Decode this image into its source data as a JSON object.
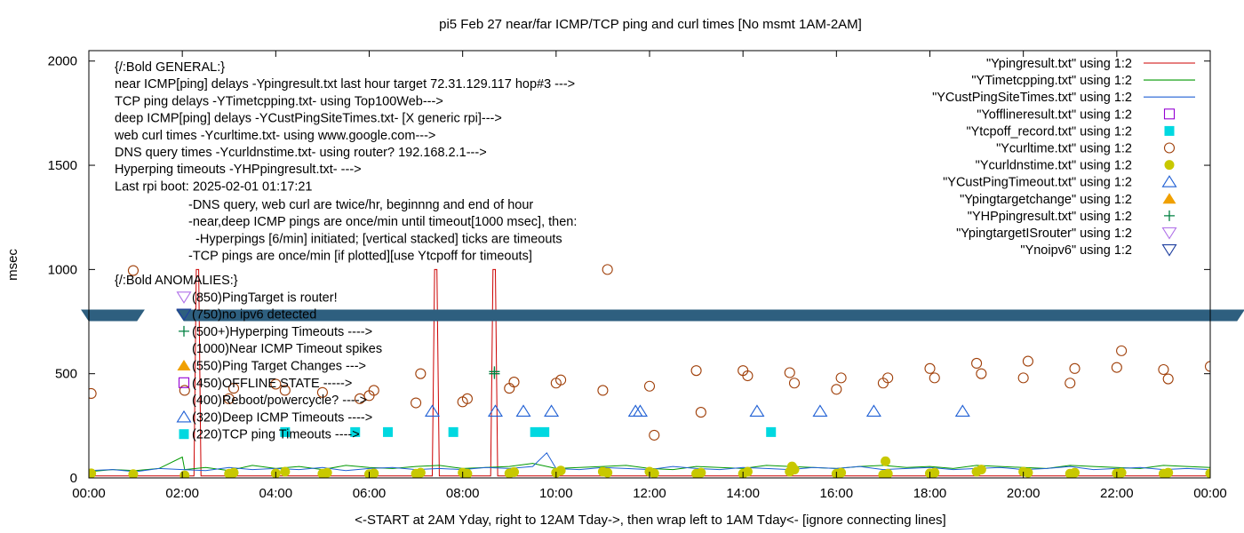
{
  "chart_data": {
    "type": "scatter",
    "title": "pi5 Feb 27  near/far ICMP/TCP ping and curl times [No msmt 1AM-2AM]",
    "xlabel": "<-START at 2AM Yday, right to 12AM Tday->, then wrap left to 1AM Tday<- [ignore connecting lines]",
    "ylabel": "msec",
    "xlim": [
      0,
      24
    ],
    "ylim": [
      0,
      2050
    ],
    "xticks": [
      0,
      2,
      4,
      6,
      8,
      10,
      12,
      14,
      16,
      18,
      20,
      22,
      24
    ],
    "xtick_labels": [
      "00:00",
      "02:00",
      "04:00",
      "06:00",
      "08:00",
      "10:00",
      "12:00",
      "14:00",
      "16:00",
      "18:00",
      "20:00",
      "22:00",
      "00:00"
    ],
    "yticks": [
      0,
      500,
      1000,
      1500,
      2000
    ],
    "ytick_labels": [
      "0",
      "500",
      "1000",
      "1500",
      "2000"
    ],
    "grid": false,
    "legend_position": "top-right",
    "legend": [
      {
        "label": "\"Ypingresult.txt\" using 1:2",
        "style": "line",
        "color": "#cc0000"
      },
      {
        "label": "\"YTimetcpping.txt\" using 1:2",
        "style": "line",
        "color": "#009900"
      },
      {
        "label": "\"YCustPingSiteTimes.txt\" using 1:2",
        "style": "line",
        "color": "#1f5fd4"
      },
      {
        "label": "\"Yofflineresult.txt\" using 1:2",
        "style": "open-square",
        "color": "#9400d3"
      },
      {
        "label": "\"Ytcpoff_record.txt\" using 1:2",
        "style": "filled-square",
        "color": "#00d8e0"
      },
      {
        "label": "\"Ycurltime.txt\" using 1:2",
        "style": "open-circle",
        "color": "#a0400a"
      },
      {
        "label": "\"Ycurldnstime.txt\" using 1:2",
        "style": "filled-circle",
        "color": "#c8c800"
      },
      {
        "label": "\"YCustPingTimeout.txt\" using 1:2",
        "style": "open-triangle-up",
        "color": "#1f5fd4"
      },
      {
        "label": "\"Ypingtargetchange\" using 1:2",
        "style": "filled-triangle-up",
        "color": "#f0a000"
      },
      {
        "label": "\"YHPpingresult.txt\" using 1:2",
        "style": "plus",
        "color": "#008040"
      },
      {
        "label": "\"YpingtargetISrouter\" using 1:2",
        "style": "open-triangle-down",
        "color": "#b070e8"
      },
      {
        "label": "\"Ynoipv6\" using 1:2",
        "style": "open-triangle-down",
        "color": "#1f3f9f"
      }
    ],
    "annotations_general": [
      "{/:Bold GENERAL:}",
      "near ICMP[ping] delays -Ypingresult.txt last hour target 72.31.129.117 hop#3 --->",
      "TCP ping delays -YTimetcpping.txt- using Top100Web--->",
      "deep ICMP[ping] delays -YCustPingSiteTimes.txt- [X generic rpi]--->",
      "web curl times -Ycurltime.txt- using www.google.com--->",
      "DNS query times -Ycurldnstime.txt- using router? 192.168.2.1--->",
      "Hyperping timeouts -YHPpingresult.txt- --->",
      "Last rpi boot: 2025-02-01 01:17:21"
    ],
    "annotations_notes": [
      "-DNS query, web curl are twice/hr, beginnng and end of hour",
      "-near,deep ICMP pings are once/min until timeout[1000 msec], then:",
      "  -Hyperpings [6/min] initiated; [vertical stacked] ticks are timeouts",
      "-TCP pings are once/min [if plotted][use Ytcpoff for timeouts]"
    ],
    "annotations_anomalies": [
      "{/:Bold ANOMALIES:}",
      "(850)PingTarget is router!",
      "(750)no ipv6 detected",
      "(500+)Hyperping Timeouts ---->",
      "(1000)Near ICMP Timeout spikes",
      "(550)Ping Target Changes --->",
      "(450)OFFLINE STATE ----->",
      "(400)Reboot/powercycle? ---->",
      "(320)Deep ICMP Timeouts ---->",
      "(220)TCP ping Timeouts ---->"
    ],
    "noipv6_band": {
      "y": 780,
      "color": "#2e5f7f"
    },
    "series": [
      {
        "name": "\"Ycurltime.txt\" using 1:2",
        "style": "open-circle",
        "color": "#a0400a",
        "x": [
          0.05,
          0.95,
          2.05,
          3.0,
          3.1,
          4.0,
          4.2,
          5.0,
          5.8,
          6.0,
          6.1,
          7.0,
          7.1,
          8.0,
          8.1,
          9.0,
          9.1,
          10.0,
          10.1,
          11.0,
          11.1,
          12.0,
          12.1,
          13.0,
          13.1,
          14.0,
          14.1,
          15.0,
          15.1,
          16.0,
          16.1,
          17.0,
          17.1,
          18.0,
          18.1,
          19.0,
          19.1,
          20.0,
          20.1,
          21.0,
          21.1,
          22.0,
          22.1,
          23.0,
          23.1,
          24.0
        ],
        "y": [
          405,
          995,
          420,
          380,
          430,
          450,
          420,
          410,
          380,
          395,
          420,
          360,
          500,
          365,
          380,
          430,
          460,
          455,
          470,
          420,
          1000,
          440,
          205,
          515,
          315,
          515,
          490,
          505,
          455,
          425,
          480,
          455,
          480,
          525,
          480,
          550,
          500,
          480,
          560,
          455,
          525,
          530,
          610,
          520,
          475,
          535
        ]
      },
      {
        "name": "\"Ycurldnstime.txt\" using 1:2",
        "style": "filled-circle",
        "color": "#c8c800",
        "x": [
          0.05,
          0.95,
          2.05,
          3.0,
          3.1,
          4.0,
          4.2,
          5.0,
          5.1,
          6.0,
          6.1,
          7.0,
          7.1,
          8.0,
          8.1,
          9.0,
          9.1,
          10.0,
          10.1,
          11.0,
          11.1,
          12.0,
          12.1,
          13.0,
          13.1,
          14.0,
          14.1,
          15.0,
          15.05,
          15.1,
          16.0,
          16.1,
          17.0,
          17.05,
          17.1,
          18.0,
          18.1,
          19.0,
          19.1,
          20.0,
          20.1,
          21.0,
          21.1,
          22.0,
          22.1,
          23.0,
          23.1,
          24.0
        ],
        "y": [
          22,
          18,
          12,
          20,
          25,
          22,
          30,
          20,
          25,
          18,
          22,
          20,
          25,
          25,
          20,
          22,
          28,
          25,
          35,
          30,
          25,
          30,
          22,
          20,
          25,
          20,
          30,
          30,
          55,
          40,
          20,
          25,
          15,
          80,
          20,
          22,
          25,
          30,
          40,
          30,
          25,
          20,
          25,
          22,
          25,
          20,
          25,
          22
        ]
      },
      {
        "name": "\"YCustPingTimeout.txt\" using 1:2",
        "style": "open-triangle-up",
        "color": "#1f5fd4",
        "x": [
          7.35,
          8.7,
          9.3,
          9.9,
          11.7,
          11.8,
          14.3,
          15.65,
          16.8,
          18.7
        ],
        "y": [
          320,
          320,
          320,
          320,
          320,
          320,
          320,
          320,
          320,
          320
        ]
      },
      {
        "name": "\"Ytcpoff_record.txt\" using 1:2",
        "style": "filled-square",
        "color": "#00d8e0",
        "x": [
          4.2,
          5.7,
          6.4,
          7.8,
          9.55,
          9.75,
          14.6
        ],
        "y": [
          220,
          220,
          220,
          220,
          220,
          220,
          220
        ]
      },
      {
        "name": "\"YHPpingresult.txt\" using 1:2",
        "style": "plus",
        "color": "#008040",
        "x": [
          8.68,
          8.68
        ],
        "y": [
          500,
          510
        ]
      },
      {
        "name": "\"Ypingresult.txt\" using 1:2",
        "style": "line",
        "color": "#cc0000",
        "x": [
          0,
          2.25,
          2.3,
          2.35,
          2.4,
          7.35,
          7.4,
          7.45,
          7.5,
          8.6,
          8.65,
          8.7,
          8.75,
          24
        ],
        "y": [
          10,
          10,
          1000,
          1000,
          10,
          10,
          1000,
          1000,
          10,
          10,
          1000,
          1000,
          10,
          10
        ]
      },
      {
        "name": "\"YTimetcpping.txt\" using 1:2",
        "style": "line",
        "color": "#009900",
        "x": [
          0,
          0.5,
          1.0,
          1.5,
          2.0,
          2.05,
          2.5,
          3.0,
          3.5,
          4.0,
          4.5,
          5.0,
          5.5,
          6.0,
          6.5,
          7.0,
          7.5,
          8.0,
          8.5,
          9.0,
          9.5,
          10.0,
          10.5,
          11.0,
          11.5,
          12.0,
          12.5,
          13.0,
          13.5,
          14.0,
          14.5,
          15.0,
          15.5,
          16.0,
          16.5,
          17.0,
          17.5,
          18.0,
          18.5,
          19.0,
          19.5,
          20.0,
          20.5,
          21.0,
          21.5,
          22.0,
          22.5,
          23.0,
          23.5,
          24.0
        ],
        "y": [
          30,
          40,
          35,
          45,
          100,
          40,
          50,
          35,
          60,
          45,
          55,
          40,
          60,
          50,
          45,
          55,
          60,
          45,
          50,
          55,
          70,
          45,
          50,
          55,
          60,
          45,
          40,
          55,
          50,
          45,
          60,
          55,
          50,
          45,
          55,
          60,
          50,
          55,
          45,
          60,
          55,
          50,
          45,
          60,
          55,
          50,
          45,
          60,
          55,
          50
        ]
      },
      {
        "name": "\"YCustPingSiteTimes.txt\" using 1:2",
        "style": "line",
        "color": "#1f5fd4",
        "x": [
          0,
          0.5,
          1.0,
          1.5,
          2.0,
          2.5,
          3.0,
          3.5,
          4.0,
          4.5,
          5.0,
          5.5,
          6.0,
          6.5,
          7.0,
          7.5,
          8.0,
          8.5,
          9.0,
          9.5,
          9.8,
          10.0,
          10.5,
          11.0,
          11.5,
          12.0,
          12.5,
          13.0,
          13.5,
          14.0,
          14.5,
          15.0,
          15.5,
          16.0,
          16.5,
          17.0,
          17.5,
          18.0,
          18.5,
          19.0,
          19.5,
          20.0,
          20.5,
          21.0,
          21.5,
          22.0,
          22.5,
          23.0,
          23.5,
          24.0
        ],
        "y": [
          35,
          40,
          30,
          45,
          40,
          35,
          50,
          40,
          45,
          40,
          50,
          35,
          45,
          50,
          40,
          45,
          40,
          50,
          45,
          55,
          120,
          45,
          40,
          50,
          45,
          40,
          55,
          45,
          40,
          50,
          45,
          40,
          50,
          45,
          55,
          40,
          45,
          50,
          40,
          45,
          50,
          40,
          45,
          55,
          40,
          45,
          50,
          40,
          45,
          40
        ]
      }
    ]
  }
}
